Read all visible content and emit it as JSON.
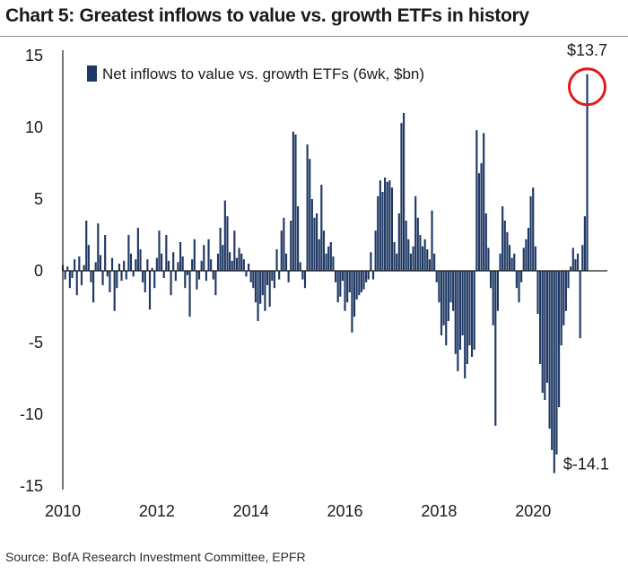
{
  "chart_data": {
    "type": "bar",
    "title": "Chart 5: Greatest inflows to value vs. growth ETFs in history",
    "source": "Source: BofA Research Investment Committee, EPFR",
    "legend": "Net inflows to value vs. growth ETFs (6wk, $bn)",
    "legend_position": "top-left",
    "xlabel": "",
    "ylabel": "",
    "ylim": [
      -15,
      15
    ],
    "y_ticks": [
      15,
      10,
      5,
      0,
      -5,
      -10,
      -15
    ],
    "x_ticks": [
      "2010",
      "2012",
      "2014",
      "2016",
      "2018",
      "2020"
    ],
    "x_tick_years": [
      2010,
      2012,
      2014,
      2016,
      2018,
      2020
    ],
    "x_range": [
      2010,
      2021.35
    ],
    "bar_color": "#1f3864",
    "annotations": [
      {
        "label": "$13.7",
        "value": 13.7,
        "circled": true
      },
      {
        "label": "$-14.1",
        "value": -14.1,
        "circled": false
      }
    ],
    "series": [
      {
        "name": "Net inflows to value vs. growth ETFs (6wk, $bn)",
        "points": [
          [
            2010.0,
            0.4
          ],
          [
            2010.05,
            -0.6
          ],
          [
            2010.1,
            0.3
          ],
          [
            2010.15,
            -1.2
          ],
          [
            2010.2,
            -0.5
          ],
          [
            2010.25,
            0.8
          ],
          [
            2010.3,
            -1.7
          ],
          [
            2010.35,
            1.0
          ],
          [
            2010.4,
            -1.0
          ],
          [
            2010.45,
            0.4
          ],
          [
            2010.5,
            3.5
          ],
          [
            2010.55,
            1.8
          ],
          [
            2010.6,
            -0.8
          ],
          [
            2010.65,
            -2.2
          ],
          [
            2010.7,
            0.6
          ],
          [
            2010.75,
            3.3
          ],
          [
            2010.8,
            1.1
          ],
          [
            2010.85,
            -1.0
          ],
          [
            2010.9,
            2.5
          ],
          [
            2010.95,
            -0.4
          ],
          [
            2011.0,
            -1.5
          ],
          [
            2011.05,
            0.9
          ],
          [
            2011.1,
            -2.8
          ],
          [
            2011.15,
            -1.2
          ],
          [
            2011.2,
            0.5
          ],
          [
            2011.25,
            -0.7
          ],
          [
            2011.3,
            0.7
          ],
          [
            2011.35,
            -0.6
          ],
          [
            2011.4,
            2.5
          ],
          [
            2011.45,
            1.2
          ],
          [
            2011.5,
            -0.4
          ],
          [
            2011.55,
            0.8
          ],
          [
            2011.6,
            3.0
          ],
          [
            2011.65,
            1.5
          ],
          [
            2011.7,
            -0.8
          ],
          [
            2011.75,
            -1.5
          ],
          [
            2011.8,
            0.8
          ],
          [
            2011.85,
            -2.7
          ],
          [
            2011.9,
            0.2
          ],
          [
            2011.95,
            -1.2
          ],
          [
            2012.0,
            0.9
          ],
          [
            2012.05,
            2.8
          ],
          [
            2012.1,
            1.2
          ],
          [
            2012.15,
            -0.5
          ],
          [
            2012.2,
            2.5
          ],
          [
            2012.25,
            0.7
          ],
          [
            2012.3,
            -1.7
          ],
          [
            2012.35,
            1.3
          ],
          [
            2012.4,
            -0.7
          ],
          [
            2012.45,
            0.6
          ],
          [
            2012.5,
            2.0
          ],
          [
            2012.55,
            1.0
          ],
          [
            2012.6,
            -1.2
          ],
          [
            2012.65,
            -0.3
          ],
          [
            2012.7,
            -3.2
          ],
          [
            2012.75,
            0.8
          ],
          [
            2012.8,
            2.2
          ],
          [
            2012.85,
            -1.3
          ],
          [
            2012.9,
            -0.6
          ],
          [
            2012.95,
            0.7
          ],
          [
            2013.0,
            1.8
          ],
          [
            2013.05,
            -0.7
          ],
          [
            2013.1,
            2.2
          ],
          [
            2013.15,
            0.8
          ],
          [
            2013.2,
            -0.6
          ],
          [
            2013.25,
            -1.7
          ],
          [
            2013.3,
            1.2
          ],
          [
            2013.35,
            3.0
          ],
          [
            2013.4,
            1.8
          ],
          [
            2013.45,
            4.9
          ],
          [
            2013.5,
            3.8
          ],
          [
            2013.55,
            1.3
          ],
          [
            2013.6,
            0.7
          ],
          [
            2013.65,
            2.8
          ],
          [
            2013.7,
            0.9
          ],
          [
            2013.75,
            1.6
          ],
          [
            2013.8,
            1.2
          ],
          [
            2013.85,
            0.8
          ],
          [
            2013.9,
            -0.4
          ],
          [
            2013.95,
            0.5
          ],
          [
            2014.0,
            -0.8
          ],
          [
            2014.05,
            -1.2
          ],
          [
            2014.1,
            -2.2
          ],
          [
            2014.15,
            -3.5
          ],
          [
            2014.2,
            -2.3
          ],
          [
            2014.25,
            -1.7
          ],
          [
            2014.3,
            -2.8
          ],
          [
            2014.35,
            -1.0
          ],
          [
            2014.4,
            -2.5
          ],
          [
            2014.45,
            -0.7
          ],
          [
            2014.5,
            -1.2
          ],
          [
            2014.55,
            1.5
          ],
          [
            2014.6,
            -0.6
          ],
          [
            2014.65,
            2.8
          ],
          [
            2014.7,
            3.7
          ],
          [
            2014.75,
            1.2
          ],
          [
            2014.8,
            -0.8
          ],
          [
            2014.85,
            3.5
          ],
          [
            2014.9,
            9.7
          ],
          [
            2014.95,
            9.5
          ],
          [
            2015.0,
            4.5
          ],
          [
            2015.05,
            0.6
          ],
          [
            2015.1,
            -0.6
          ],
          [
            2015.15,
            -1.2
          ],
          [
            2015.2,
            8.8
          ],
          [
            2015.25,
            7.8
          ],
          [
            2015.3,
            5.0
          ],
          [
            2015.35,
            3.7
          ],
          [
            2015.4,
            4.0
          ],
          [
            2015.45,
            2.2
          ],
          [
            2015.5,
            6.0
          ],
          [
            2015.55,
            2.8
          ],
          [
            2015.6,
            1.2
          ],
          [
            2015.65,
            1.7
          ],
          [
            2015.7,
            2.0
          ],
          [
            2015.75,
            1.0
          ],
          [
            2015.8,
            -0.8
          ],
          [
            2015.85,
            -2.2
          ],
          [
            2015.9,
            -1.8
          ],
          [
            2015.95,
            -0.7
          ],
          [
            2016.0,
            -2.8
          ],
          [
            2016.05,
            -2.2
          ],
          [
            2016.1,
            -1.5
          ],
          [
            2016.15,
            -4.3
          ],
          [
            2016.2,
            -3.2
          ],
          [
            2016.25,
            -2.0
          ],
          [
            2016.3,
            -1.7
          ],
          [
            2016.35,
            -1.5
          ],
          [
            2016.4,
            -1.3
          ],
          [
            2016.45,
            -0.8
          ],
          [
            2016.5,
            -0.6
          ],
          [
            2016.55,
            1.3
          ],
          [
            2016.6,
            -0.6
          ],
          [
            2016.65,
            2.8
          ],
          [
            2016.7,
            5.2
          ],
          [
            2016.75,
            6.3
          ],
          [
            2016.8,
            5.5
          ],
          [
            2016.85,
            6.5
          ],
          [
            2016.9,
            6.2
          ],
          [
            2016.95,
            6.3
          ],
          [
            2017.0,
            5.8
          ],
          [
            2017.05,
            2.0
          ],
          [
            2017.1,
            1.2
          ],
          [
            2017.15,
            4.0
          ],
          [
            2017.2,
            10.3
          ],
          [
            2017.25,
            11.0
          ],
          [
            2017.3,
            3.5
          ],
          [
            2017.35,
            2.2
          ],
          [
            2017.4,
            1.2
          ],
          [
            2017.45,
            1.7
          ],
          [
            2017.5,
            5.2
          ],
          [
            2017.55,
            3.7
          ],
          [
            2017.6,
            2.5
          ],
          [
            2017.65,
            1.7
          ],
          [
            2017.7,
            2.2
          ],
          [
            2017.75,
            1.5
          ],
          [
            2017.8,
            0.8
          ],
          [
            2017.85,
            4.2
          ],
          [
            2017.9,
            1.2
          ],
          [
            2017.95,
            -0.8
          ],
          [
            2018.0,
            -2.2
          ],
          [
            2018.05,
            -4.5
          ],
          [
            2018.1,
            -3.8
          ],
          [
            2018.15,
            -5.2
          ],
          [
            2018.2,
            -3.5
          ],
          [
            2018.25,
            -2.2
          ],
          [
            2018.3,
            -2.8
          ],
          [
            2018.35,
            -5.8
          ],
          [
            2018.4,
            -7.0
          ],
          [
            2018.45,
            -5.5
          ],
          [
            2018.5,
            -4.5
          ],
          [
            2018.55,
            -7.5
          ],
          [
            2018.6,
            -6.5
          ],
          [
            2018.65,
            -5.2
          ],
          [
            2018.7,
            -6.0
          ],
          [
            2018.75,
            -5.5
          ],
          [
            2018.8,
            9.8
          ],
          [
            2018.85,
            6.8
          ],
          [
            2018.9,
            7.5
          ],
          [
            2018.95,
            9.6
          ],
          [
            2019.0,
            4.0
          ],
          [
            2019.05,
            1.6
          ],
          [
            2019.1,
            -1.2
          ],
          [
            2019.15,
            -3.8
          ],
          [
            2019.2,
            -10.8
          ],
          [
            2019.25,
            -2.8
          ],
          [
            2019.3,
            1.2
          ],
          [
            2019.35,
            4.5
          ],
          [
            2019.4,
            3.5
          ],
          [
            2019.45,
            2.7
          ],
          [
            2019.5,
            1.8
          ],
          [
            2019.55,
            0.9
          ],
          [
            2019.6,
            1.2
          ],
          [
            2019.65,
            -1.2
          ],
          [
            2019.7,
            -2.2
          ],
          [
            2019.75,
            -0.8
          ],
          [
            2019.8,
            1.6
          ],
          [
            2019.85,
            2.2
          ],
          [
            2019.9,
            3.0
          ],
          [
            2019.95,
            5.2
          ],
          [
            2020.0,
            5.8
          ],
          [
            2020.05,
            1.7
          ],
          [
            2020.1,
            -3.0
          ],
          [
            2020.15,
            -6.5
          ],
          [
            2020.2,
            -8.5
          ],
          [
            2020.25,
            -9.0
          ],
          [
            2020.3,
            -7.8
          ],
          [
            2020.35,
            -11.0
          ],
          [
            2020.4,
            -12.5
          ],
          [
            2020.45,
            -14.1
          ],
          [
            2020.5,
            -12.8
          ],
          [
            2020.55,
            -9.5
          ],
          [
            2020.6,
            -5.2
          ],
          [
            2020.65,
            -3.8
          ],
          [
            2020.7,
            -2.8
          ],
          [
            2020.75,
            -1.2
          ],
          [
            2020.8,
            0.3
          ],
          [
            2020.85,
            1.6
          ],
          [
            2020.9,
            0.8
          ],
          [
            2020.95,
            1.2
          ],
          [
            2021.0,
            -4.7
          ],
          [
            2021.05,
            1.8
          ],
          [
            2021.1,
            3.8
          ],
          [
            2021.15,
            13.7
          ]
        ]
      }
    ]
  }
}
